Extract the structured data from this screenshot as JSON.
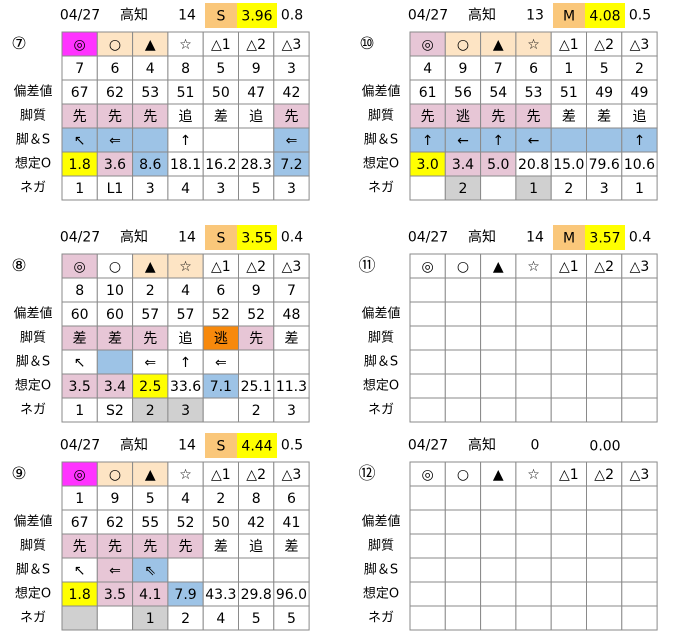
{
  "row_labels": [
    "偏差値",
    "脚質",
    "脚＆S",
    "想定O",
    "ネガ"
  ],
  "panels": [
    {
      "label": "⑦",
      "header": {
        "date": "04/27",
        "course": "高知",
        "count": "14",
        "grade": {
          "text": "S",
          "fill": "#fac77a"
        },
        "index": {
          "text": "3.96",
          "fill": "#ffff00"
        },
        "diff": "0.8"
      },
      "marks": [
        {
          "text": "◎",
          "fill": "#ff33ff"
        },
        {
          "text": "○",
          "fill": "#fde4c4"
        },
        {
          "text": "▲",
          "fill": "#fde4c4"
        },
        "☆",
        "△1",
        "△2",
        "△3"
      ],
      "rows": [
        [
          "7",
          "6",
          "4",
          "8",
          "5",
          "9",
          "3"
        ],
        [
          "67",
          "62",
          "53",
          "51",
          "50",
          "47",
          "42"
        ],
        [
          {
            "text": "先",
            "fill": "#e7c6d6"
          },
          {
            "text": "先",
            "fill": "#e7c6d6"
          },
          {
            "text": "先",
            "fill": "#e7c6d6"
          },
          "追",
          "差",
          "追",
          {
            "text": "先",
            "fill": "#e7c6d6"
          }
        ],
        [
          {
            "text": "↖",
            "fill": "#9dc3e6"
          },
          {
            "text": "⇐",
            "fill": "#9dc3e6"
          },
          {
            "text": null,
            "fill": "#9dc3e6"
          },
          "↑",
          null,
          null,
          {
            "text": "⇐",
            "fill": "#9dc3e6"
          }
        ],
        [
          {
            "text": "1.8",
            "fill": "#ffff00"
          },
          {
            "text": "3.6",
            "fill": "#e7c6d6"
          },
          {
            "text": "8.6",
            "fill": "#9dc3e6"
          },
          "18.1",
          "16.2",
          "28.3",
          {
            "text": "7.2",
            "fill": "#9dc3e6"
          }
        ],
        [
          "1",
          "L1",
          "3",
          "4",
          "3",
          "5",
          "3"
        ]
      ]
    },
    {
      "label": "⑩",
      "header": {
        "date": "04/27",
        "course": "高知",
        "count": "13",
        "grade": {
          "text": "M",
          "fill": "#fac77a"
        },
        "index": {
          "text": "4.08",
          "fill": "#ffff00"
        },
        "diff": "0.5"
      },
      "marks": [
        {
          "text": "◎",
          "fill": "#e7c6d6"
        },
        {
          "text": "○",
          "fill": "#fde4c4"
        },
        {
          "text": "▲",
          "fill": "#fde4c4"
        },
        {
          "text": "☆",
          "fill": "#fde4c4"
        },
        "△1",
        "△2",
        "△3"
      ],
      "rows": [
        [
          "4",
          "9",
          "7",
          "6",
          "1",
          "5",
          "2"
        ],
        [
          "61",
          "56",
          "54",
          "53",
          "51",
          "49",
          "49"
        ],
        [
          {
            "text": "先",
            "fill": "#e7c6d6"
          },
          {
            "text": "逃",
            "fill": "#e7c6d6"
          },
          {
            "text": "先",
            "fill": "#e7c6d6"
          },
          {
            "text": "先",
            "fill": "#e7c6d6"
          },
          "差",
          "差",
          "追"
        ],
        [
          {
            "text": "↑",
            "fill": "#9dc3e6"
          },
          {
            "text": "←",
            "fill": "#9dc3e6"
          },
          {
            "text": "↑",
            "fill": "#9dc3e6"
          },
          {
            "text": "←",
            "fill": "#9dc3e6"
          },
          {
            "text": null,
            "fill": "#9dc3e6"
          },
          {
            "text": null,
            "fill": "#9dc3e6"
          },
          {
            "text": "↑",
            "fill": "#9dc3e6"
          }
        ],
        [
          {
            "text": "3.0",
            "fill": "#ffff00"
          },
          {
            "text": "3.4",
            "fill": "#e7c6d6"
          },
          {
            "text": "5.0",
            "fill": "#e7c6d6"
          },
          "20.8",
          "15.0",
          "79.6",
          "10.6"
        ],
        [
          null,
          {
            "text": "2",
            "fill": "#d0d0d0"
          },
          null,
          {
            "text": "1",
            "fill": "#d0d0d0"
          },
          "2",
          "3",
          "1"
        ]
      ]
    },
    {
      "label": "⑧",
      "header": {
        "date": "04/27",
        "course": "高知",
        "count": "14",
        "grade": {
          "text": "S",
          "fill": "#fac77a"
        },
        "index": {
          "text": "3.55",
          "fill": "#ffff00"
        },
        "diff": "0.4"
      },
      "marks": [
        {
          "text": "◎",
          "fill": "#e7c6d6"
        },
        "○",
        {
          "text": "▲",
          "fill": "#fde4c4"
        },
        {
          "text": "☆",
          "fill": "#fde4c4"
        },
        "△1",
        "△2",
        "△3"
      ],
      "rows": [
        [
          "8",
          "10",
          "2",
          "4",
          "6",
          "9",
          "7"
        ],
        [
          "60",
          "60",
          "57",
          "57",
          "52",
          "52",
          "48"
        ],
        [
          {
            "text": "差",
            "fill": "#e7c6d6"
          },
          {
            "text": "差",
            "fill": "#e7c6d6"
          },
          {
            "text": "先",
            "fill": "#e7c6d6"
          },
          "追",
          {
            "text": "逃",
            "fill": "#f7890c"
          },
          {
            "text": "先",
            "fill": "#e7c6d6"
          },
          "差"
        ],
        [
          "↖",
          {
            "text": null,
            "fill": "#9dc3e6"
          },
          "⇐",
          "↑",
          "⇐",
          null,
          null
        ],
        [
          {
            "text": "3.5",
            "fill": "#e7c6d6"
          },
          {
            "text": "3.4",
            "fill": "#e7c6d6"
          },
          {
            "text": "2.5",
            "fill": "#ffff00"
          },
          "33.6",
          {
            "text": "7.1",
            "fill": "#9dc3e6"
          },
          "25.1",
          "11.3"
        ],
        [
          "1",
          "S2",
          {
            "text": "2",
            "fill": "#d0d0d0"
          },
          {
            "text": "3",
            "fill": "#d0d0d0"
          },
          null,
          "2",
          "3"
        ]
      ]
    },
    {
      "label": "⑪",
      "header": {
        "date": "04/27",
        "course": "高知",
        "count": "14",
        "grade": {
          "text": "M",
          "fill": "#fac77a"
        },
        "index": {
          "text": "3.57",
          "fill": "#ffff00"
        },
        "diff": "0.4"
      },
      "marks": [
        "◎",
        "○",
        "▲",
        "☆",
        "△1",
        "△2",
        "△3"
      ]
    },
    {
      "label": "⑨",
      "header": {
        "date": "04/27",
        "course": "高知",
        "count": "14",
        "grade": {
          "text": "S",
          "fill": "#fac77a"
        },
        "index": {
          "text": "4.44",
          "fill": "#ffff00"
        },
        "diff": "0.5"
      },
      "marks": [
        {
          "text": "◎",
          "fill": "#ff33ff"
        },
        {
          "text": "○",
          "fill": "#fde4c4"
        },
        {
          "text": "▲",
          "fill": "#fde4c4"
        },
        "☆",
        "△1",
        "△2",
        "△3"
      ],
      "rows": [
        [
          "1",
          "9",
          "5",
          "4",
          "2",
          "8",
          "6"
        ],
        [
          "67",
          "62",
          "55",
          "52",
          "50",
          "42",
          "41"
        ],
        [
          {
            "text": "先",
            "fill": "#e7c6d6"
          },
          {
            "text": "先",
            "fill": "#e7c6d6"
          },
          {
            "text": "先",
            "fill": "#e7c6d6"
          },
          {
            "text": "先",
            "fill": "#e7c6d6"
          },
          "差",
          "追",
          "差"
        ],
        [
          "↖",
          {
            "text": "⇐",
            "fill": "#e7c6d6"
          },
          {
            "text": "⇖",
            "fill": "#9dc3e6"
          },
          null,
          null,
          null,
          null
        ],
        [
          {
            "text": "1.8",
            "fill": "#ffff00"
          },
          {
            "text": "3.5",
            "fill": "#e7c6d6"
          },
          {
            "text": "4.1",
            "fill": "#e7c6d6"
          },
          {
            "text": "7.9",
            "fill": "#9dc3e6"
          },
          "43.3",
          "29.8",
          "96.0"
        ],
        [
          {
            "text": null,
            "fill": "#d0d0d0"
          },
          null,
          {
            "text": "1",
            "fill": "#d0d0d0"
          },
          "2",
          "4",
          "5",
          "5"
        ]
      ]
    },
    {
      "label": "⑫",
      "header": {
        "date": "04/27",
        "course": "高知",
        "count": "0",
        "index": {
          "text": "0.00",
          "fill": "#ffffff"
        }
      },
      "marks": [
        "◎",
        "○",
        "▲",
        "☆",
        "△1",
        "△2",
        "△3"
      ]
    }
  ]
}
